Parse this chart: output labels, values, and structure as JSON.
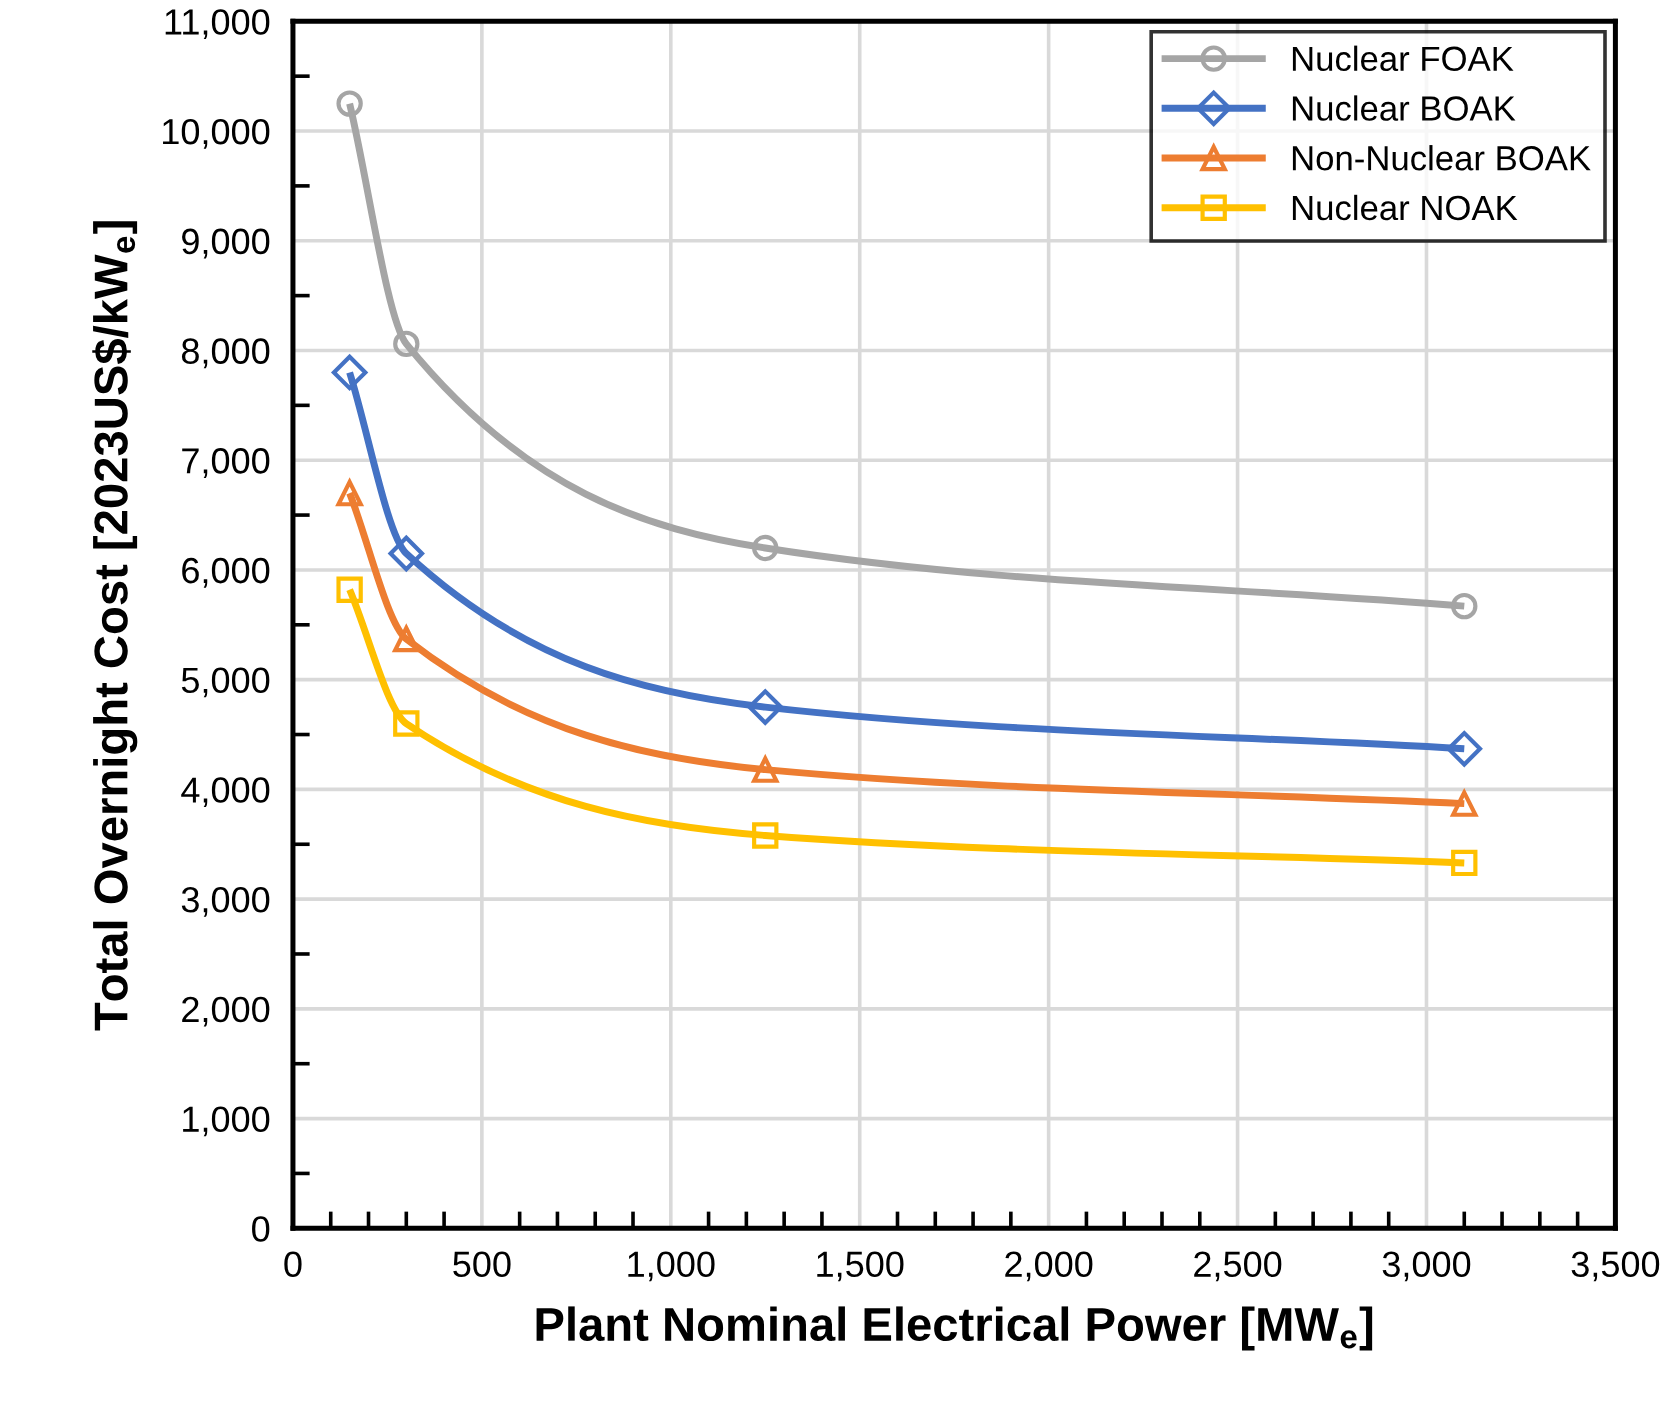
{
  "chart_data": {
    "type": "line",
    "xlabel": "Plant Nominal Electrical Power [MW$_{e}$]",
    "ylabel": "Total Overnight Cost [2023US$/kW$_{e}$]",
    "x": [
      150,
      300,
      1250,
      3100
    ],
    "series": [
      {
        "name": "Nuclear FOAK",
        "color": "#a5a5a5",
        "marker": "circle",
        "values": [
          10250,
          8060,
          6200,
          5670
        ]
      },
      {
        "name": "Nuclear BOAK",
        "color": "#4472c4",
        "marker": "diamond",
        "values": [
          7800,
          6150,
          4750,
          4370
        ]
      },
      {
        "name": "Non-Nuclear BOAK",
        "color": "#ed7d31",
        "marker": "triangle",
        "values": [
          6700,
          5370,
          4180,
          3870
        ]
      },
      {
        "name": "Nuclear NOAK",
        "color": "#ffc000",
        "marker": "square",
        "values": [
          5820,
          4600,
          3580,
          3330
        ]
      }
    ],
    "xlim": [
      0,
      3500
    ],
    "xticks": [
      0,
      {
        "value": 500,
        "label": "500"
      },
      {
        "value": 1000,
        "label": "1,000"
      },
      {
        "value": 1500,
        "label": "1,500"
      },
      {
        "value": 2000,
        "label": "2,000"
      },
      {
        "value": 2500,
        "label": "2,500"
      },
      {
        "value": 3000,
        "label": "3,000"
      },
      {
        "value": 3500,
        "label": "3,500"
      }
    ],
    "ylim": [
      0,
      11000
    ],
    "yticks": [
      0,
      {
        "value": 1000,
        "label": "1,000"
      },
      {
        "value": 2000,
        "label": "2,000"
      },
      {
        "value": 3000,
        "label": "3,000"
      },
      {
        "value": 4000,
        "label": "4,000"
      },
      {
        "value": 5000,
        "label": "5,000"
      },
      {
        "value": 6000,
        "label": "6,000"
      },
      {
        "value": 7000,
        "label": "7,000"
      },
      {
        "value": 8000,
        "label": "8,000"
      },
      {
        "value": 9000,
        "label": "9,000"
      },
      {
        "value": 10000,
        "label": "10,000"
      },
      {
        "value": 11000,
        "label": "11,000"
      }
    ],
    "grid": true,
    "legend": "top right",
    "line_style": "solid"
  }
}
